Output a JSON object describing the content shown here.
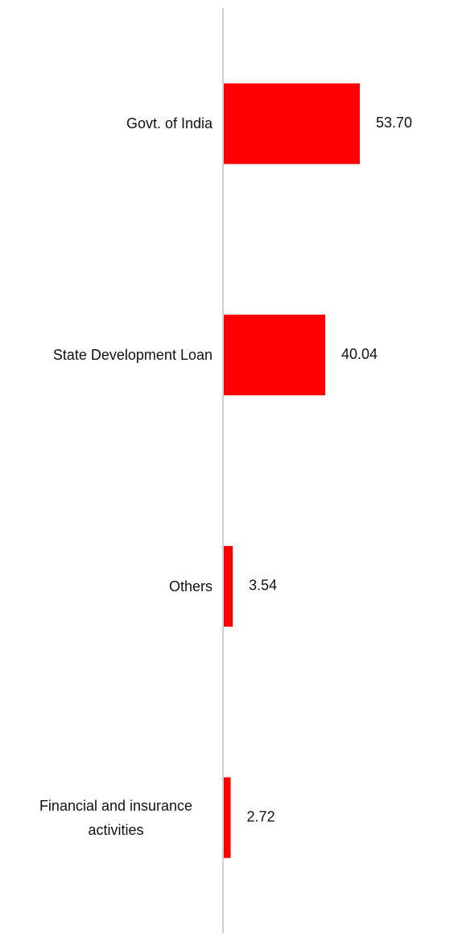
{
  "chart_data": {
    "type": "bar",
    "orientation": "horizontal",
    "categories": [
      "Govt. of India",
      "State Development Loan",
      "Others",
      "Financial and insurance activities"
    ],
    "values": [
      53.7,
      40.04,
      3.54,
      2.72
    ],
    "value_labels": [
      "53.70",
      "40.04",
      "3.54",
      "2.72"
    ],
    "color": "#ff0000"
  }
}
